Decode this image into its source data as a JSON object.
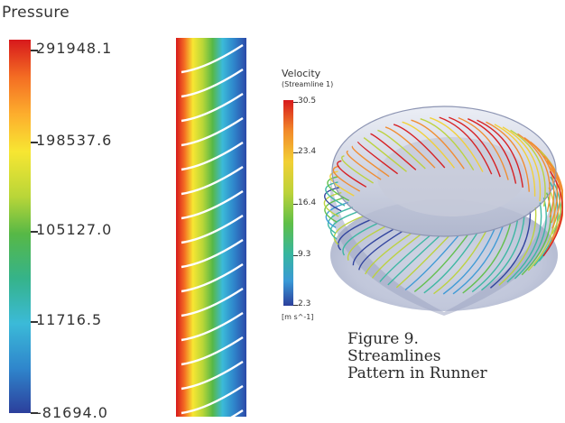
{
  "pressure_legend": {
    "title": "Pressure",
    "labels": [
      "291948.1",
      "198537.6",
      "105127.0",
      "11716.5",
      "-81694.0"
    ]
  },
  "velocity_legend": {
    "title": "Velocity",
    "subtitle": "(Streamline 1)",
    "labels": [
      "30.5",
      "23.4",
      "16.4",
      "9.3",
      "2.3"
    ],
    "unit": "[m s^-1]"
  },
  "caption": {
    "line1": "Figure 9.",
    "line2": "Streamlines",
    "line3": "Pattern in Runner"
  },
  "colors": {
    "high": "#d7191c",
    "mid": "#57b846",
    "low": "#2c3f9c"
  }
}
